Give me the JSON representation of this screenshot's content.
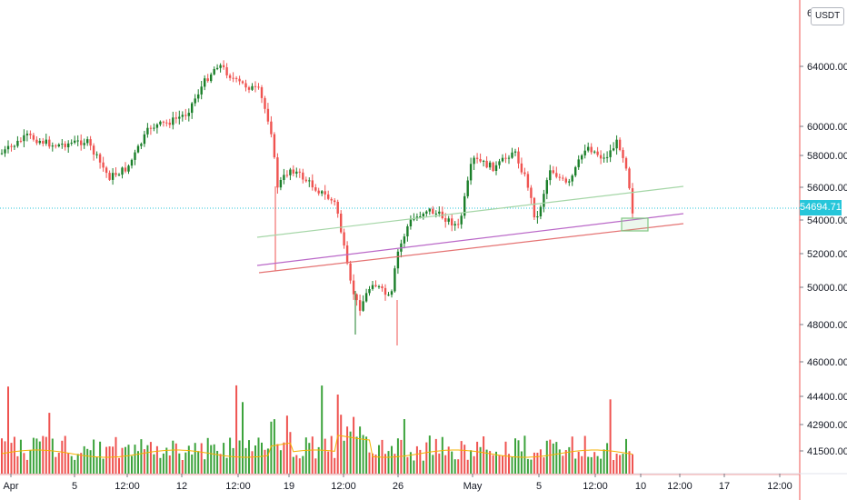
{
  "chart": {
    "currency": "USDT",
    "last_price": "54694.71",
    "top_tick_partial": "6",
    "price_axis_labels": [
      "64000.00",
      "60000.00",
      "58000.00",
      "56000.00",
      "54000.00",
      "52000.00",
      "50000.00",
      "48000.00",
      "46000.00",
      "44400.00",
      "42900.00",
      "41500.00"
    ],
    "time_axis_labels": [
      "Apr",
      "5",
      "12:00",
      "12",
      "12:00",
      "19",
      "12:00",
      "26",
      "May",
      "5",
      "12:00",
      "10",
      "12:00",
      "17",
      "12:00"
    ],
    "colors": {
      "up": "#26a69a",
      "up_dark": "#1b7f2a",
      "down": "#ef5350",
      "ma": "#f5b000",
      "last_line": "#26c6da",
      "trend_green": "#a5d6a7",
      "trend_purple": "#ba68c8",
      "trend_red": "#e57373",
      "box": "#81c784"
    }
  },
  "chart_data": {
    "type": "candlestick",
    "symbol_quote": "USDT",
    "last_price": 54694.71,
    "y_range_approx": [
      41000,
      66000
    ],
    "x_labels": [
      "Apr",
      "5",
      "12:00",
      "12",
      "12:00",
      "19",
      "12:00",
      "26",
      "May",
      "5",
      "12:00",
      "10",
      "12:00",
      "17",
      "12:00"
    ],
    "price_path_approx": [
      {
        "x": "Apr",
        "y": 59300
      },
      {
        "x": "5",
        "y": 58300
      },
      {
        "x": "12:00",
        "y": 57400
      },
      {
        "x": "12",
        "y": 60000
      },
      {
        "x": "12:00",
        "y": 63800
      },
      {
        "x": "19",
        "y": 55000
      },
      {
        "x": "12:00",
        "y": 49000
      },
      {
        "x": "26",
        "y": 53500
      },
      {
        "x": "May",
        "y": 57800
      },
      {
        "x": "5",
        "y": 54600
      },
      {
        "x": "12:00",
        "y": 58400
      },
      {
        "x": "10",
        "y": 54700
      }
    ],
    "volume_series": {
      "name": "Volume"
    },
    "ma_series": {
      "name": "MA"
    }
  }
}
